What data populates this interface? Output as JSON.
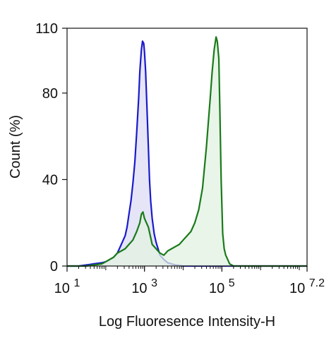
{
  "chart_data": {
    "type": "area",
    "xlabel": "Log Fluoresence Intensity-H",
    "ylabel": "Count  (%)",
    "x_scale": "log10",
    "xlim": [
      1,
      7.2
    ],
    "ylim": [
      0,
      110
    ],
    "x_ticks": [
      {
        "value": 1,
        "base": "10",
        "exp": "1"
      },
      {
        "value": 3,
        "base": "10",
        "exp": "3"
      },
      {
        "value": 5,
        "base": "10",
        "exp": "5"
      },
      {
        "value": 7.2,
        "base": "10",
        "exp": "7.2"
      }
    ],
    "y_ticks": [
      {
        "value": 0,
        "label": "0"
      },
      {
        "value": 40,
        "label": "40"
      },
      {
        "value": 80,
        "label": "80"
      },
      {
        "value": 110,
        "label": "110"
      }
    ],
    "grid": false,
    "series": [
      {
        "color": "#1a1acc",
        "fill": "#dcdcf4",
        "x": [
          1.0,
          1.3,
          1.5,
          1.7,
          1.9,
          2.0,
          2.1,
          2.2,
          2.3,
          2.4,
          2.5,
          2.55,
          2.6,
          2.65,
          2.7,
          2.75,
          2.8,
          2.85,
          2.88,
          2.92,
          2.95,
          2.98,
          3.0,
          3.03,
          3.06,
          3.1,
          3.13,
          3.16,
          3.2,
          3.25,
          3.3,
          3.35,
          3.4,
          3.5,
          3.6,
          3.8,
          4.0,
          4.5,
          7.2
        ],
        "values": [
          0,
          0,
          0.5,
          1,
          1.5,
          2,
          3,
          4,
          6,
          10,
          14,
          18,
          24,
          30,
          38,
          48,
          62,
          78,
          90,
          100,
          104,
          103,
          99,
          90,
          75,
          55,
          40,
          30,
          22,
          15,
          11,
          8,
          5,
          3,
          1.5,
          0.5,
          0,
          0,
          0
        ]
      },
      {
        "color": "#1a7a1a",
        "fill": "#e2f2e2",
        "x": [
          1.0,
          1.5,
          1.9,
          2.0,
          2.1,
          2.2,
          2.3,
          2.4,
          2.5,
          2.6,
          2.7,
          2.8,
          2.88,
          2.92,
          2.96,
          3.0,
          3.05,
          3.1,
          3.15,
          3.2,
          3.3,
          3.4,
          3.5,
          3.6,
          3.7,
          3.8,
          3.9,
          4.0,
          4.1,
          4.2,
          4.3,
          4.4,
          4.5,
          4.6,
          4.7,
          4.75,
          4.8,
          4.85,
          4.88,
          4.92,
          4.95,
          4.98,
          5.02,
          5.06,
          5.1,
          5.15,
          5.2,
          5.3,
          7.2
        ],
        "values": [
          0,
          0,
          1,
          2,
          3,
          4,
          6,
          7,
          8,
          10,
          12,
          16,
          20,
          24,
          25,
          22,
          20,
          18,
          14,
          10,
          8,
          6,
          5,
          7,
          8,
          9,
          10,
          12,
          14,
          16,
          20,
          26,
          36,
          55,
          78,
          90,
          100,
          106,
          104,
          96,
          70,
          40,
          15,
          8,
          5,
          3,
          1,
          0,
          0
        ]
      }
    ]
  }
}
